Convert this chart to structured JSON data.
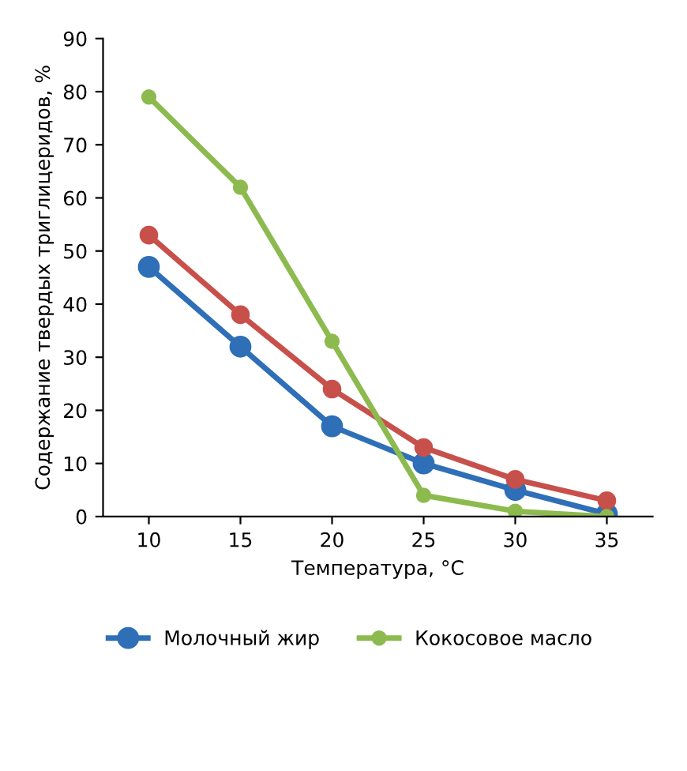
{
  "chart_data": {
    "type": "line",
    "xlabel": "Температура, °C",
    "ylabel": "Содержание твердых триглицеридов, %",
    "categories": [
      "10",
      "15",
      "20",
      "25",
      "30",
      "35"
    ],
    "series": [
      {
        "name": "Молочный жир",
        "color": "#2e6fb7",
        "values": [
          47,
          32,
          17,
          10,
          5,
          0.5
        ]
      },
      {
        "color": "#c8504b",
        "values": [
          53,
          38,
          24,
          13,
          7,
          3
        ]
      },
      {
        "name": "Кокосовое масло",
        "color": "#8dba4e",
        "values": [
          79,
          62,
          33,
          4,
          1,
          0
        ]
      }
    ],
    "ylim": [
      0,
      90
    ],
    "yticks": [
      0,
      10,
      20,
      30,
      40,
      50,
      60,
      70,
      80,
      90
    ],
    "marker": "circle",
    "line_style": "solid",
    "grid": false,
    "legend": "bottom"
  }
}
